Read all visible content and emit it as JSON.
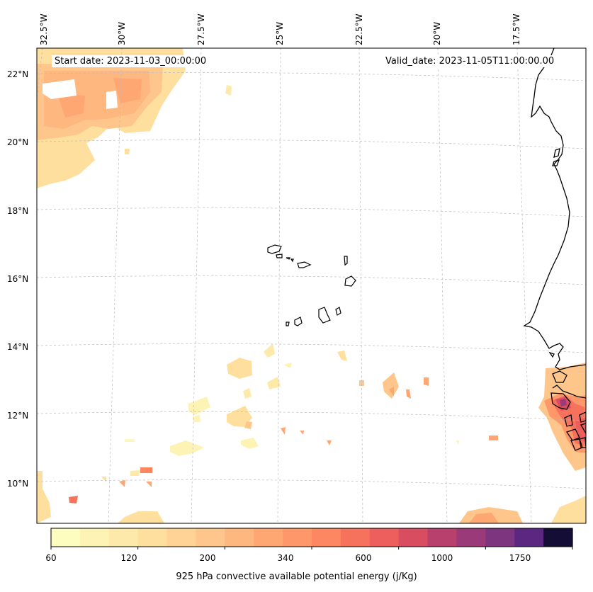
{
  "annotations": {
    "start_date": "Start date: 2023-11-03_00:00:00",
    "valid_date": "Valid_date: 2023-11-05T11:00:00.00"
  },
  "lon_labels": [
    "32.5°W",
    "30°W",
    "27.5°W",
    "25°W",
    "22.5°W",
    "20°W",
    "17.5°W"
  ],
  "lat_labels": [
    "22°N",
    "20°N",
    "18°N",
    "16°N",
    "14°N",
    "12°N",
    "10°N"
  ],
  "colorbar": {
    "title": "925 hPa convective available potential energy (j/Kg)",
    "tick_labels": [
      "60",
      "120",
      "200",
      "340",
      "600",
      "1000",
      "1750"
    ],
    "colors": [
      "#fcfdbf",
      "#fcf3b4",
      "#fde9a9",
      "#fedf9e",
      "#fed395",
      "#fec68a",
      "#feb77e",
      "#fea773",
      "#fe9769",
      "#fc8761",
      "#f7725c",
      "#ec5f5c",
      "#d84d5f",
      "#b8406c",
      "#9a3a78",
      "#7d3580",
      "#5c2781",
      "#140e36"
    ]
  }
}
